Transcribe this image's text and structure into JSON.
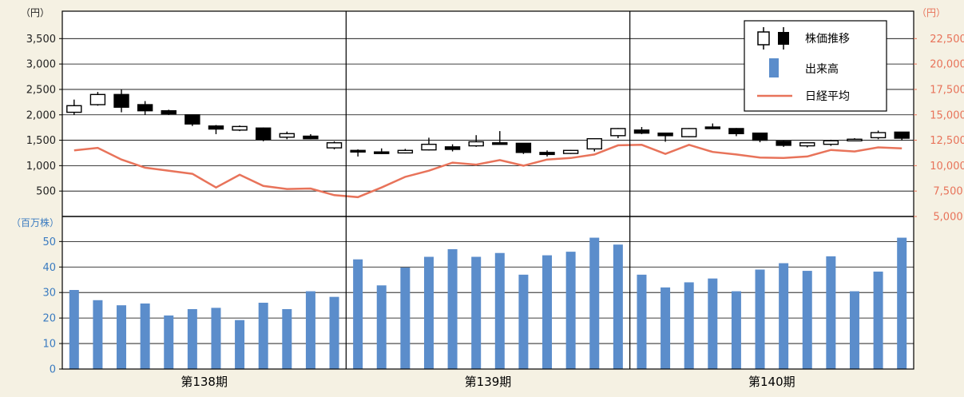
{
  "chart_data": {
    "type": "candlestick-volume",
    "left_axis_unit": "（円）",
    "right_axis_unit": "（円）",
    "volume_axis_unit": "（百万株）",
    "left_ticks": [
      "3,500",
      "3,000",
      "2,500",
      "2,000",
      "1,500",
      "1,000",
      "500"
    ],
    "right_ticks": [
      "22,500",
      "20,000",
      "17,500",
      "15,000",
      "12,500",
      "10,000",
      "7,500",
      "5,000"
    ],
    "volume_ticks": [
      "50",
      "40",
      "30",
      "20",
      "10",
      "0"
    ],
    "price_ylim": [
      0,
      4000
    ],
    "nikkei_ylim": [
      5000,
      25000
    ],
    "volume_ylim": [
      0,
      57
    ],
    "periods": [
      "第138期",
      "第139期",
      "第140期"
    ],
    "legend": {
      "candle": "株価推移",
      "volume": "出来高",
      "nikkei": "日経平均"
    },
    "colors": {
      "volume_bar": "#5b8dcb",
      "nikkei_line": "#e8735a",
      "right_axis": "#e8735a",
      "volume_axis": "#3a7bc0",
      "background": "#f5f1e3"
    },
    "candles": [
      {
        "o": 2050,
        "h": 2300,
        "l": 2000,
        "c": 2180
      },
      {
        "o": 2200,
        "h": 2450,
        "l": 2180,
        "c": 2400
      },
      {
        "o": 2400,
        "h": 2500,
        "l": 2050,
        "c": 2150
      },
      {
        "o": 2200,
        "h": 2270,
        "l": 2000,
        "c": 2080
      },
      {
        "o": 2080,
        "h": 2100,
        "l": 2000,
        "c": 2020
      },
      {
        "o": 2000,
        "h": 2000,
        "l": 1780,
        "c": 1820
      },
      {
        "o": 1780,
        "h": 1800,
        "l": 1620,
        "c": 1720
      },
      {
        "o": 1700,
        "h": 1790,
        "l": 1680,
        "c": 1770
      },
      {
        "o": 1740,
        "h": 1750,
        "l": 1480,
        "c": 1520
      },
      {
        "o": 1560,
        "h": 1670,
        "l": 1520,
        "c": 1630
      },
      {
        "o": 1580,
        "h": 1620,
        "l": 1520,
        "c": 1530
      },
      {
        "o": 1350,
        "h": 1480,
        "l": 1320,
        "c": 1450
      },
      {
        "o": 1300,
        "h": 1320,
        "l": 1180,
        "c": 1290
      },
      {
        "o": 1270,
        "h": 1340,
        "l": 1230,
        "c": 1250
      },
      {
        "o": 1250,
        "h": 1330,
        "l": 1240,
        "c": 1300
      },
      {
        "o": 1310,
        "h": 1550,
        "l": 1300,
        "c": 1420
      },
      {
        "o": 1370,
        "h": 1420,
        "l": 1280,
        "c": 1320
      },
      {
        "o": 1390,
        "h": 1600,
        "l": 1370,
        "c": 1470
      },
      {
        "o": 1450,
        "h": 1680,
        "l": 1420,
        "c": 1440
      },
      {
        "o": 1440,
        "h": 1440,
        "l": 1230,
        "c": 1260
      },
      {
        "o": 1260,
        "h": 1300,
        "l": 1180,
        "c": 1220
      },
      {
        "o": 1240,
        "h": 1310,
        "l": 1230,
        "c": 1300
      },
      {
        "o": 1330,
        "h": 1540,
        "l": 1280,
        "c": 1530
      },
      {
        "o": 1590,
        "h": 1740,
        "l": 1540,
        "c": 1730
      },
      {
        "o": 1700,
        "h": 1760,
        "l": 1620,
        "c": 1640
      },
      {
        "o": 1640,
        "h": 1650,
        "l": 1470,
        "c": 1590
      },
      {
        "o": 1570,
        "h": 1740,
        "l": 1560,
        "c": 1730
      },
      {
        "o": 1760,
        "h": 1830,
        "l": 1720,
        "c": 1750
      },
      {
        "o": 1730,
        "h": 1740,
        "l": 1580,
        "c": 1630
      },
      {
        "o": 1640,
        "h": 1650,
        "l": 1460,
        "c": 1500
      },
      {
        "o": 1480,
        "h": 1500,
        "l": 1370,
        "c": 1400
      },
      {
        "o": 1390,
        "h": 1460,
        "l": 1360,
        "c": 1450
      },
      {
        "o": 1420,
        "h": 1510,
        "l": 1390,
        "c": 1490
      },
      {
        "o": 1500,
        "h": 1540,
        "l": 1490,
        "c": 1520
      },
      {
        "o": 1550,
        "h": 1690,
        "l": 1520,
        "c": 1650
      },
      {
        "o": 1660,
        "h": 1660,
        "l": 1500,
        "c": 1540
      }
    ],
    "nikkei": [
      11500,
      11750,
      10600,
      9800,
      9500,
      9200,
      7850,
      9100,
      8000,
      7700,
      7750,
      7100,
      6900,
      7850,
      8900,
      9500,
      10300,
      10100,
      10550,
      10000,
      10600,
      10750,
      11100,
      12000,
      12050,
      11150,
      12050,
      11350,
      11100,
      10800,
      10750,
      10900,
      11550,
      11400,
      11800,
      11700
    ],
    "volume": [
      31,
      27,
      25,
      25.7,
      21,
      23.5,
      24,
      19.2,
      26,
      23.5,
      30.5,
      28.3,
      43,
      32.8,
      39.8,
      44,
      47,
      44,
      45.5,
      37,
      44.6,
      46,
      51.5,
      48.8,
      37,
      32,
      34,
      35.5,
      30.5,
      39,
      41.5,
      38.5,
      44.2,
      30.5,
      38.2,
      51.5
    ]
  }
}
